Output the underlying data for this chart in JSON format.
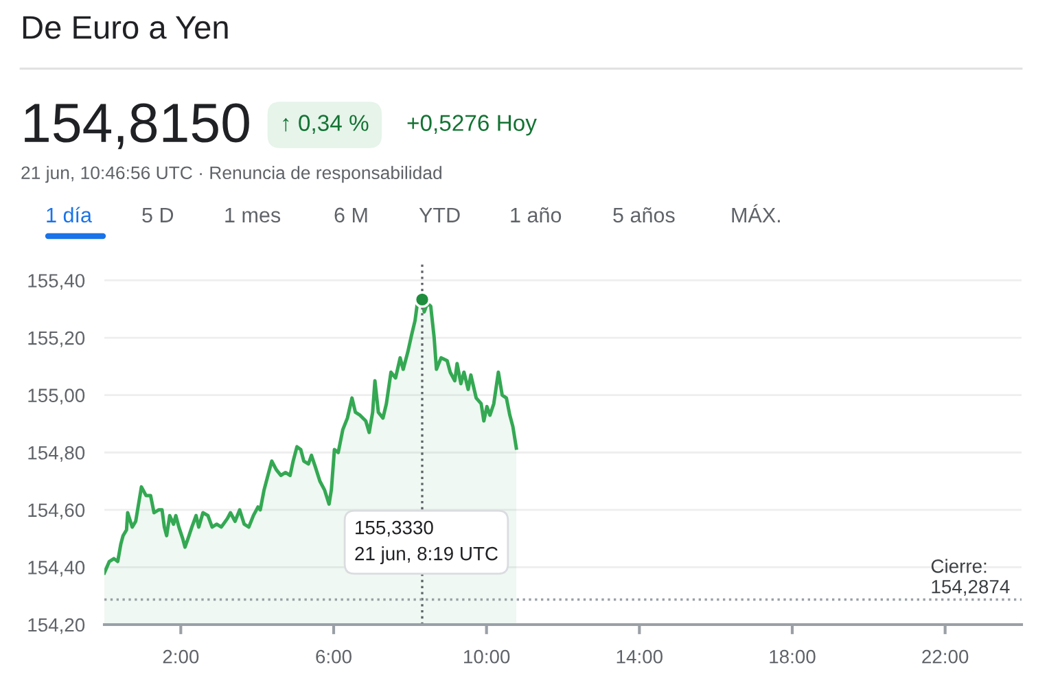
{
  "chart_data": {
    "type": "area",
    "title": "De Euro a Yen",
    "x": [
      0,
      0.13,
      0.25,
      0.35,
      0.43,
      0.49,
      0.58,
      0.61,
      0.73,
      0.82,
      0.97,
      1.09,
      1.21,
      1.3,
      1.42,
      1.51,
      1.57,
      1.63,
      1.71,
      1.81,
      1.87,
      1.95,
      2.05,
      2.11,
      2.19,
      2.29,
      2.4,
      2.47,
      2.58,
      2.71,
      2.82,
      2.94,
      3.06,
      3.22,
      3.3,
      3.42,
      3.54,
      3.66,
      3.78,
      3.9,
      4.02,
      4.08,
      4.18,
      4.26,
      4.38,
      4.5,
      4.62,
      4.74,
      4.86,
      4.94,
      5.04,
      5.14,
      5.22,
      5.34,
      5.42,
      5.52,
      5.64,
      5.76,
      5.88,
      5.94,
      6.02,
      6.12,
      6.24,
      6.36,
      6.48,
      6.57,
      6.69,
      6.84,
      6.93,
      7.02,
      7.08,
      7.17,
      7.29,
      7.38,
      7.5,
      7.62,
      7.74,
      7.82,
      7.94,
      8.04,
      8.13,
      8.19,
      8.317,
      8.37,
      8.45,
      8.54,
      8.63,
      8.69,
      8.81,
      8.97,
      9.05,
      9.17,
      9.23,
      9.33,
      9.41,
      9.52,
      9.59,
      9.73,
      9.86,
      9.93,
      10.01,
      10.09,
      10.19,
      10.31,
      10.41,
      10.52,
      10.61,
      10.69,
      10.78
    ],
    "series": [
      {
        "color": "#34a853",
        "marker": "none",
        "values": [
          154.38,
          154.42,
          154.43,
          154.42,
          154.48,
          154.51,
          154.53,
          154.59,
          154.54,
          154.56,
          154.68,
          154.65,
          154.65,
          154.59,
          154.6,
          154.6,
          154.54,
          154.51,
          154.58,
          154.55,
          154.58,
          154.54,
          154.5,
          154.47,
          154.5,
          154.54,
          154.58,
          154.54,
          154.59,
          154.58,
          154.54,
          154.55,
          154.54,
          154.57,
          154.59,
          154.56,
          154.6,
          154.55,
          154.54,
          154.58,
          154.61,
          154.6,
          154.67,
          154.71,
          154.77,
          154.74,
          154.72,
          154.73,
          154.72,
          154.77,
          154.82,
          154.81,
          154.77,
          154.76,
          154.79,
          154.75,
          154.7,
          154.67,
          154.62,
          154.67,
          154.81,
          154.8,
          154.88,
          154.92,
          154.99,
          154.94,
          154.93,
          154.91,
          154.87,
          154.94,
          155.05,
          154.94,
          154.92,
          154.97,
          155.08,
          155.06,
          155.13,
          155.09,
          155.15,
          155.21,
          155.26,
          155.32,
          155.333,
          155.29,
          155.32,
          155.31,
          155.2,
          155.09,
          155.13,
          155.12,
          155.08,
          155.05,
          155.11,
          155.04,
          155.08,
          155.02,
          155.07,
          154.99,
          154.97,
          154.91,
          154.96,
          154.93,
          154.97,
          155.08,
          155.0,
          154.99,
          154.93,
          154.89,
          154.815
        ]
      },
      {
        "type": "scatter",
        "marker": "circle",
        "color": "#1e8e3e",
        "x": [
          8.317
        ],
        "values": [
          155.333
        ]
      }
    ],
    "xlim": [
      0,
      24
    ],
    "ylim": [
      154.2,
      155.46
    ],
    "xticks": [
      {
        "value": 2,
        "label": "2:00"
      },
      {
        "value": 6,
        "label": "6:00"
      },
      {
        "value": 10,
        "label": "10:00"
      },
      {
        "value": 14,
        "label": "14:00"
      },
      {
        "value": 18,
        "label": "18:00"
      },
      {
        "value": 22,
        "label": "22:00"
      }
    ],
    "yticks": [
      {
        "value": 154.2,
        "label": "154,20"
      },
      {
        "value": 154.4,
        "label": "154,40"
      },
      {
        "value": 154.6,
        "label": "154,60"
      },
      {
        "value": 154.8,
        "label": "154,80"
      },
      {
        "value": 155.0,
        "label": "155,00"
      },
      {
        "value": 155.2,
        "label": "155,20"
      },
      {
        "value": 155.4,
        "label": "155,40"
      }
    ],
    "grid": "y",
    "legend": false,
    "line_style": "solid",
    "ref_lines": [
      {
        "axis": "x",
        "value": 8.317,
        "color": "#5f6368",
        "line_style": "dotted"
      },
      {
        "axis": "y",
        "value": 154.2874,
        "label": "Cierre:\n154,2874",
        "color": "#9aa0a6",
        "line_style": "dotted"
      }
    ],
    "annotations": [
      "154,8150",
      "↑ 0,34 %",
      "+0,5276 Hoy",
      "21 jun, 10:46:56 UTC · Renuncia de responsabilidad",
      "1 día",
      "5 D",
      "1 mes",
      "6 M",
      "YTD",
      "1 año",
      "5 años",
      "MÁX.",
      "155,3330\n21 jun, 8:19 UTC"
    ]
  }
}
